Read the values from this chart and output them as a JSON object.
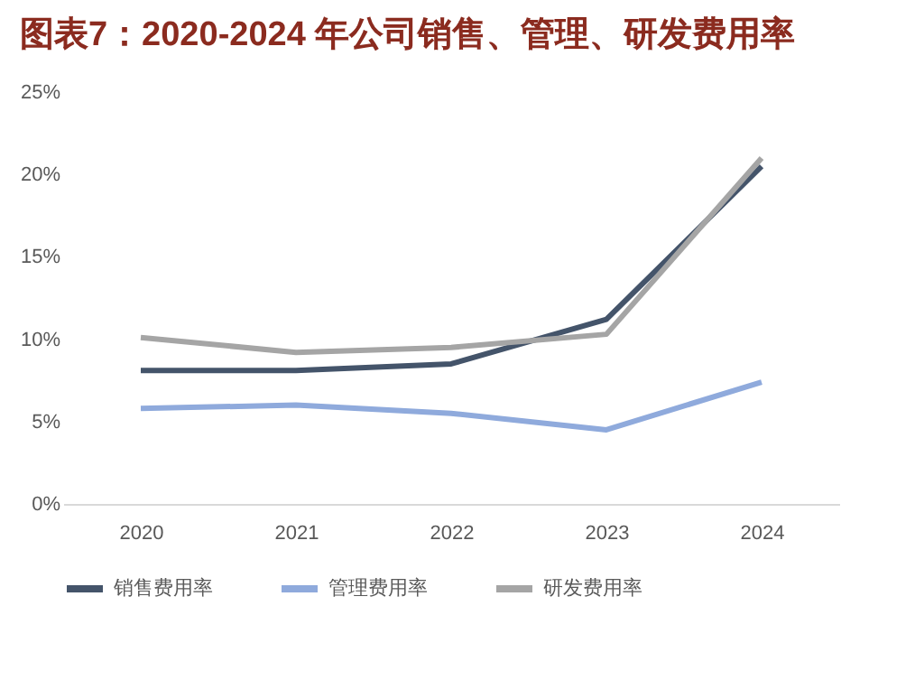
{
  "chart_data": {
    "type": "line",
    "title": "图表7：2020-2024 年公司销售、管理、研发费用率",
    "categories": [
      "2020",
      "2021",
      "2022",
      "2023",
      "2024"
    ],
    "series": [
      {
        "name": "销售费用率",
        "color": "#44546a",
        "values": [
          8.1,
          8.1,
          8.5,
          11.2,
          20.5
        ]
      },
      {
        "name": "管理费用率",
        "color": "#8faadc",
        "values": [
          5.8,
          6.0,
          5.5,
          4.5,
          7.4
        ]
      },
      {
        "name": "研发费用率",
        "color": "#a5a5a5",
        "values": [
          10.1,
          9.2,
          9.5,
          10.3,
          21.0
        ]
      }
    ],
    "ylim": [
      0,
      25
    ],
    "yticks": [
      {
        "value": 0,
        "label": "0%"
      },
      {
        "value": 5,
        "label": "5%"
      },
      {
        "value": 10,
        "label": "10%"
      },
      {
        "value": 15,
        "label": "15%"
      },
      {
        "value": 20,
        "label": "20%"
      },
      {
        "value": 25,
        "label": "25%"
      }
    ],
    "grid": false,
    "legend": "bottom",
    "marker": "none",
    "line_style": "solid"
  }
}
